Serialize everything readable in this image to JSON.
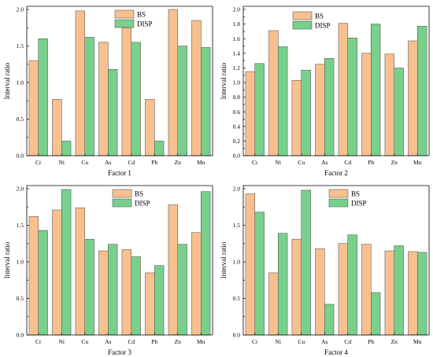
{
  "chart_data": [
    {
      "type": "bar",
      "xlabel": "Factor 1",
      "ylabel": "Interval ratio",
      "categories": [
        "Cr",
        "Ni",
        "Cu",
        "As",
        "Cd",
        "Pb",
        "Zn",
        "Mn"
      ],
      "ylim": [
        0,
        2.0
      ],
      "yticks": [
        "0.0",
        "0.5",
        "1.0",
        "1.5",
        "2.0"
      ],
      "legend_position": "top-right",
      "series": [
        {
          "name": "BS",
          "color": "#F9C08F",
          "values": [
            1.3,
            0.77,
            1.98,
            1.55,
            1.75,
            0.77,
            2.0,
            1.85
          ]
        },
        {
          "name": "DISP",
          "color": "#78D08C",
          "values": [
            1.6,
            0.2,
            1.62,
            1.18,
            1.55,
            0.2,
            1.5,
            1.48
          ]
        }
      ]
    },
    {
      "type": "bar",
      "xlabel": "Factor 2",
      "ylabel": "Interval ratio",
      "categories": [
        "Cr",
        "Ni",
        "Cu",
        "As",
        "Cd",
        "Pb",
        "Zn",
        "Mn"
      ],
      "ylim": [
        0,
        2.0
      ],
      "yticks": [
        "0.0",
        "0.2",
        "0.4",
        "0.6",
        "0.8",
        "1.0",
        "1.2",
        "1.4",
        "1.6",
        "1.8",
        "2.0"
      ],
      "legend_position": "top-left",
      "series": [
        {
          "name": "BS",
          "color": "#F9C08F",
          "values": [
            1.15,
            1.71,
            1.03,
            1.25,
            1.81,
            1.4,
            1.39,
            1.57
          ]
        },
        {
          "name": "DISP",
          "color": "#78D08C",
          "values": [
            1.26,
            1.49,
            1.17,
            1.33,
            1.61,
            1.8,
            1.2,
            1.77
          ]
        }
      ]
    },
    {
      "type": "bar",
      "xlabel": "Factor 3",
      "ylabel": "Interval ratio",
      "categories": [
        "Cr",
        "Ni",
        "Cu",
        "As",
        "Cd",
        "Pb",
        "Zn",
        "Mn"
      ],
      "ylim": [
        0,
        2.0
      ],
      "yticks": [
        "0.0",
        "0.5",
        "1.0",
        "1.5",
        "2.0"
      ],
      "legend_position": "top-center",
      "series": [
        {
          "name": "BS",
          "color": "#F9C08F",
          "values": [
            1.62,
            1.71,
            1.74,
            1.15,
            1.17,
            0.85,
            1.78,
            1.4
          ]
        },
        {
          "name": "DISP",
          "color": "#78D08C",
          "values": [
            1.43,
            1.99,
            1.31,
            1.24,
            1.07,
            0.95,
            1.24,
            1.96
          ]
        }
      ]
    },
    {
      "type": "bar",
      "xlabel": "Factor 4",
      "ylabel": "Interval ratio",
      "categories": [
        "Cr",
        "Ni",
        "Cu",
        "As",
        "Cd",
        "Pb",
        "Zn",
        "Mn"
      ],
      "ylim": [
        0,
        2.0
      ],
      "yticks": [
        "0.0",
        "0.5",
        "1.0",
        "1.5",
        "2.0"
      ],
      "legend_position": "top-right",
      "series": [
        {
          "name": "BS",
          "color": "#F9C08F",
          "values": [
            1.93,
            0.85,
            1.31,
            1.18,
            1.25,
            1.24,
            1.15,
            1.14
          ]
        },
        {
          "name": "DISP",
          "color": "#78D08C",
          "values": [
            1.68,
            1.39,
            1.98,
            0.42,
            1.37,
            0.58,
            1.22,
            1.13
          ]
        }
      ]
    }
  ]
}
